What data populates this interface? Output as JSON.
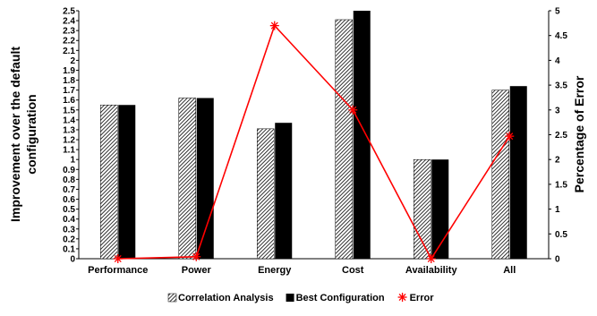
{
  "chart_data": {
    "type": "bar",
    "categories": [
      "Performance",
      "Power",
      "Energy",
      "Cost",
      "Availability",
      "All"
    ],
    "series": [
      {
        "name": "Correlation Analysis",
        "kind": "bar",
        "pattern": "hatch",
        "color": "#000000",
        "axis": "left",
        "values": [
          1.55,
          1.62,
          1.31,
          2.41,
          1.0,
          1.7
        ]
      },
      {
        "name": "Best Configuration",
        "kind": "bar",
        "pattern": "solid",
        "color": "#000000",
        "axis": "left",
        "values": [
          1.55,
          1.62,
          1.37,
          2.5,
          1.0,
          1.74
        ]
      },
      {
        "name": "Error",
        "kind": "line",
        "marker": "star",
        "color": "#ff0000",
        "axis": "right",
        "values": [
          0.0,
          0.04,
          4.7,
          3.0,
          0.0,
          2.47
        ]
      }
    ],
    "ylabel_lines": [
      "Improvement over the default",
      "configuration"
    ],
    "y2label": "Percentage of Error",
    "ylim": [
      0,
      2.5
    ],
    "yticks": [
      "0",
      "0.1",
      "0.2",
      "0.3",
      "0.4",
      "0.5",
      "0.6",
      "0.7",
      "0.8",
      "0.9",
      "1",
      "1.1",
      "1.2",
      "1.3",
      "1.4",
      "1.5",
      "1.6",
      "1.7",
      "1.8",
      "1.9",
      "2",
      "2.1",
      "2.2",
      "2.3",
      "2.4",
      "2.5"
    ],
    "y2lim": [
      0,
      5
    ],
    "y2ticks": [
      "0",
      "0.5",
      "1",
      "1.5",
      "2",
      "2.5",
      "3",
      "3.5",
      "4",
      "4.5",
      "5"
    ],
    "legend_position": "bottom",
    "grid": false
  }
}
